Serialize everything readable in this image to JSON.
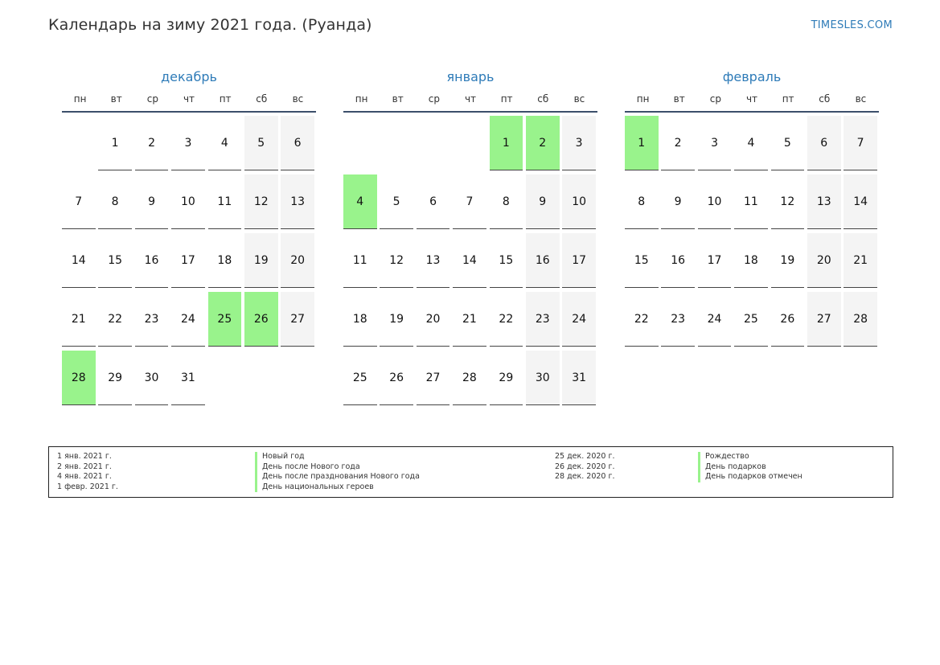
{
  "header": {
    "title": "Календарь на зиму 2021 года. (Руанда)",
    "site": "TIMESLES.COM"
  },
  "weekdays": [
    "пн",
    "вт",
    "ср",
    "чт",
    "пт",
    "сб",
    "вс"
  ],
  "colors": {
    "holiday": "#99f38c",
    "weekend": "#f4f4f4",
    "accent": "#2e7bb8"
  },
  "months": [
    {
      "name": "декабрь",
      "start_weekday": 1,
      "days": 31,
      "holidays": [
        25,
        26,
        28
      ]
    },
    {
      "name": "январь",
      "start_weekday": 4,
      "days": 31,
      "holidays": [
        1,
        2,
        4
      ]
    },
    {
      "name": "февраль",
      "start_weekday": 0,
      "days": 28,
      "holidays": [
        1
      ]
    }
  ],
  "legend": {
    "left": [
      {
        "date": "1 янв. 2021 г.",
        "name": "Новый год"
      },
      {
        "date": "2 янв. 2021 г.",
        "name": "День после Нового года"
      },
      {
        "date": "4 янв. 2021 г.",
        "name": "День после празднования Нового года"
      },
      {
        "date": "1 февр. 2021 г.",
        "name": "День национальных героев"
      }
    ],
    "right": [
      {
        "date": "25 дек. 2020 г.",
        "name": "Рождество"
      },
      {
        "date": "26 дек. 2020 г.",
        "name": "День подарков"
      },
      {
        "date": "28 дек. 2020 г.",
        "name": "День подарков отмечен"
      }
    ]
  }
}
